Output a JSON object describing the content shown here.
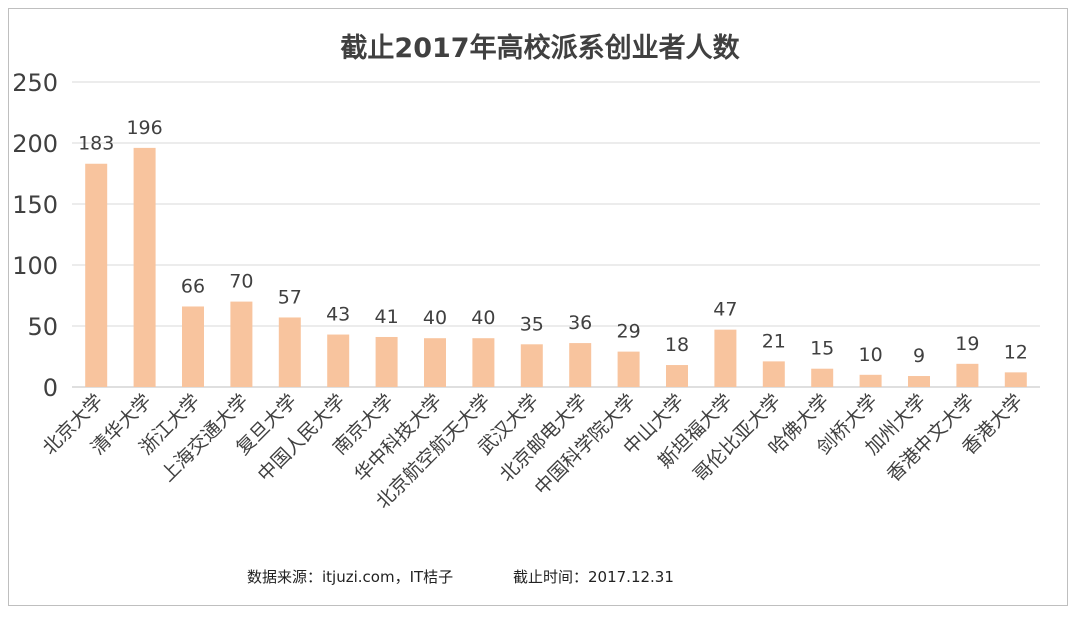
{
  "chart_data": {
    "type": "bar",
    "title": "截止2017年高校派系创业者人数",
    "categories": [
      "北京大学",
      "清华大学",
      "浙江大学",
      "上海交通大学",
      "复旦大学",
      "中国人民大学",
      "南京大学",
      "华中科技大学",
      "北京航空航天大学",
      "武汉大学",
      "北京邮电大学",
      "中国科学院大学",
      "中山大学",
      "斯坦福大学",
      "哥伦比亚大学",
      "哈佛大学",
      "剑桥大学",
      "加州大学",
      "香港中文大学",
      "香港大学"
    ],
    "values": [
      183,
      196,
      66,
      70,
      57,
      43,
      41,
      40,
      40,
      35,
      36,
      29,
      18,
      47,
      21,
      15,
      10,
      9,
      19,
      12
    ],
    "ylim": [
      0,
      250
    ],
    "yticks": [
      0,
      50,
      100,
      150,
      200,
      250
    ],
    "grid": true,
    "bar_color": "#f8c49e",
    "data_labels": true
  },
  "footer": {
    "source": "数据来源：itjuzi.com，IT桔子",
    "date": "截止时间：2017.12.31"
  }
}
